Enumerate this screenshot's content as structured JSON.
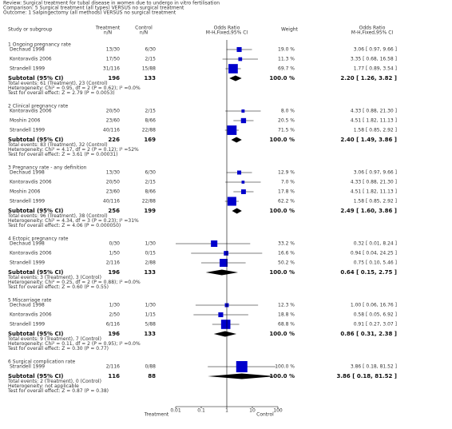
{
  "chart_data": {
    "type": "forest",
    "review": "Review: Surgical treatment for tubal disease in women due to undergo in vitro fertilisation",
    "comparison": "Comparison: 5 Surgical treatment (all types) VERSUS no surgical treatment",
    "outcome": "Outcome: 1 Salpingectomy (all methods) VERSUS no surgical treatment",
    "columns": {
      "study": "Study or subgroup",
      "treatment": [
        "Treatment",
        "n/N"
      ],
      "control": [
        "Control",
        "n/N"
      ],
      "plot": [
        "Odds Ratio",
        "M-H,Fixed,95% CI"
      ],
      "weight": "Weight",
      "estimate": [
        "Odds Ratio",
        "M-H,Fixed,95% CI"
      ]
    },
    "xscale": "log",
    "xlim": [
      0.01,
      100
    ],
    "xticks": [
      0.01,
      0.1,
      1,
      10,
      100
    ],
    "xlabel_left": "Treatment",
    "xlabel_right": "Control",
    "square_color": "#0000cc",
    "groups": [
      {
        "title": "1 Ongoing pregnancy rate",
        "studies": [
          {
            "name": "Dechaud 1998",
            "treatment": "13/30",
            "control": "6/30",
            "weight": 19.0,
            "weight_label": "19.0 %",
            "or": 3.06,
            "lo": 0.97,
            "hi": 9.66,
            "ci_label": "3.06 [ 0.97, 9.66 ]"
          },
          {
            "name": "Kontoravdis 2006",
            "treatment": "17/50",
            "control": "2/15",
            "weight": 11.3,
            "weight_label": "11.3 %",
            "or": 3.35,
            "lo": 0.68,
            "hi": 16.58,
            "ci_label": "3.35 [ 0.68, 16.58 ]"
          },
          {
            "name": "Strandell 1999",
            "treatment": "31/116",
            "control": "15/88",
            "weight": 69.7,
            "weight_label": "69.7 %",
            "or": 1.77,
            "lo": 0.89,
            "hi": 3.54,
            "ci_label": "1.77 [ 0.89, 3.54 ]"
          }
        ],
        "subtotal": {
          "label": "Subtotal (95% CI)",
          "treatment": 196,
          "control": 133,
          "weight": 100.0,
          "weight_label": "100.0 %",
          "or": 2.2,
          "lo": 1.26,
          "hi": 3.82,
          "ci_label": "2.20 [ 1.26, 3.82 ]"
        },
        "total_events": "Total events: 61 (Treatment), 23 (Control)",
        "heterogeneity": "Heterogeneity: Chi² = 0.95, df = 2 (P = 0.62); I² =0.0%",
        "overall_effect": "Test for overall effect: Z = 2.79 (P = 0.0053)"
      },
      {
        "title": "2 Clinical pregnancy rate",
        "studies": [
          {
            "name": "Kontoravdis 2006",
            "treatment": "20/50",
            "control": "2/15",
            "weight": 8.0,
            "weight_label": "8.0 %",
            "or": 4.33,
            "lo": 0.88,
            "hi": 21.3,
            "ci_label": "4.33 [ 0.88, 21.30 ]"
          },
          {
            "name": "Moshin 2006",
            "treatment": "23/60",
            "control": "8/66",
            "weight": 20.5,
            "weight_label": "20.5 %",
            "or": 4.51,
            "lo": 1.82,
            "hi": 11.13,
            "ci_label": "4.51 [ 1.82, 11.13 ]"
          },
          {
            "name": "Strandell 1999",
            "treatment": "40/116",
            "control": "22/88",
            "weight": 71.5,
            "weight_label": "71.5 %",
            "or": 1.58,
            "lo": 0.85,
            "hi": 2.92,
            "ci_label": "1.58 [ 0.85, 2.92 ]"
          }
        ],
        "subtotal": {
          "label": "Subtotal (95% CI)",
          "treatment": 226,
          "control": 169,
          "weight": 100.0,
          "weight_label": "100.0 %",
          "or": 2.4,
          "lo": 1.49,
          "hi": 3.86,
          "ci_label": "2.40 [ 1.49, 3.86 ]"
        },
        "total_events": "Total events: 83 (Treatment), 32 (Control)",
        "heterogeneity": "Heterogeneity: Chi² = 4.17, df = 2 (P = 0.12); I² =52%",
        "overall_effect": "Test for overall effect: Z = 3.61 (P = 0.00031)"
      },
      {
        "title": "3 Pregnancy rate - any definition",
        "studies": [
          {
            "name": "Dechaud 1998",
            "treatment": "13/30",
            "control": "6/30",
            "weight": 12.9,
            "weight_label": "12.9 %",
            "or": 3.06,
            "lo": 0.97,
            "hi": 9.66,
            "ci_label": "3.06 [ 0.97, 9.66 ]"
          },
          {
            "name": "Kontoravdis 2006",
            "treatment": "20/50",
            "control": "2/15",
            "weight": 7.0,
            "weight_label": "7.0 %",
            "or": 4.33,
            "lo": 0.88,
            "hi": 21.3,
            "ci_label": "4.33 [ 0.88, 21.30 ]"
          },
          {
            "name": "Moshin 2006",
            "treatment": "23/60",
            "control": "8/66",
            "weight": 17.8,
            "weight_label": "17.8 %",
            "or": 4.51,
            "lo": 1.82,
            "hi": 11.13,
            "ci_label": "4.51 [ 1.82, 11.13 ]"
          },
          {
            "name": "Strandell 1999",
            "treatment": "40/116",
            "control": "22/88",
            "weight": 62.2,
            "weight_label": "62.2 %",
            "or": 1.58,
            "lo": 0.85,
            "hi": 2.92,
            "ci_label": "1.58 [ 0.85, 2.92 ]"
          }
        ],
        "subtotal": {
          "label": "Subtotal (95% CI)",
          "treatment": 256,
          "control": 199,
          "weight": 100.0,
          "weight_label": "100.0 %",
          "or": 2.49,
          "lo": 1.6,
          "hi": 3.86,
          "ci_label": "2.49 [ 1.60, 3.86 ]"
        },
        "total_events": "Total events: 96 (Treatment), 38 (Control)",
        "heterogeneity": "Heterogeneity: Chi² = 4.34, df = 3 (P = 0.23); I² =31%",
        "overall_effect": "Test for overall effect: Z = 4.06 (P = 0.000050)"
      },
      {
        "title": "4 Ectopic pregnancy rate",
        "studies": [
          {
            "name": "Dechaud 1998",
            "treatment": "0/30",
            "control": "1/30",
            "weight": 33.2,
            "weight_label": "33.2 %",
            "or": 0.32,
            "lo": 0.01,
            "hi": 8.24,
            "ci_label": "0.32 [ 0.01, 8.24 ]"
          },
          {
            "name": "Kontoravdis 2006",
            "treatment": "1/50",
            "control": "0/15",
            "weight": 16.6,
            "weight_label": "16.6 %",
            "or": 0.94,
            "lo": 0.04,
            "hi": 24.25,
            "ci_label": "0.94 [ 0.04, 24.25 ]"
          },
          {
            "name": "Strandell 1999",
            "treatment": "2/116",
            "control": "2/88",
            "weight": 50.2,
            "weight_label": "50.2 %",
            "or": 0.75,
            "lo": 0.1,
            "hi": 5.46,
            "ci_label": "0.75 [ 0.10, 5.46 ]"
          }
        ],
        "subtotal": {
          "label": "Subtotal (95% CI)",
          "treatment": 196,
          "control": 133,
          "weight": 100.0,
          "weight_label": "100.0 %",
          "or": 0.64,
          "lo": 0.15,
          "hi": 2.75,
          "ci_label": "0.64 [ 0.15, 2.75 ]"
        },
        "total_events": "Total events: 3 (Treatment), 3 (Control)",
        "heterogeneity": "Heterogeneity: Chi² = 0.25, df = 2 (P = 0.88); I² =0.0%",
        "overall_effect": "Test for overall effect: Z = 0.60 (P = 0.55)"
      },
      {
        "title": "5 Miscarriage rate",
        "studies": [
          {
            "name": "Dechaud 1998",
            "treatment": "1/30",
            "control": "1/30",
            "weight": 12.3,
            "weight_label": "12.3 %",
            "or": 1.0,
            "lo": 0.06,
            "hi": 16.76,
            "ci_label": "1.00 [ 0.06, 16.76 ]"
          },
          {
            "name": "Kontoravdis 2006",
            "treatment": "2/50",
            "control": "1/15",
            "weight": 18.8,
            "weight_label": "18.8 %",
            "or": 0.58,
            "lo": 0.05,
            "hi": 6.92,
            "ci_label": "0.58 [ 0.05, 6.92 ]"
          },
          {
            "name": "Strandell 1999",
            "treatment": "6/116",
            "control": "5/88",
            "weight": 68.8,
            "weight_label": "68.8 %",
            "or": 0.91,
            "lo": 0.27,
            "hi": 3.07,
            "ci_label": "0.91 [ 0.27, 3.07 ]"
          }
        ],
        "subtotal": {
          "label": "Subtotal (95% CI)",
          "treatment": 196,
          "control": 133,
          "weight": 100.0,
          "weight_label": "100.0 %",
          "or": 0.86,
          "lo": 0.31,
          "hi": 2.38,
          "ci_label": "0.86 [ 0.31, 2.38 ]"
        },
        "total_events": "Total events: 9 (Treatment), 7 (Control)",
        "heterogeneity": "Heterogeneity: Chi² = 0.11, df = 2 (P = 0.95); I² =0.0%",
        "overall_effect": "Test for overall effect: Z = 0.30 (P = 0.77)"
      },
      {
        "title": "6 Surgical complication rate",
        "studies": [
          {
            "name": "Strandell 1999",
            "treatment": "2/116",
            "control": "0/88",
            "weight": 100.0,
            "weight_label": "100.0 %",
            "or": 3.86,
            "lo": 0.18,
            "hi": 81.52,
            "ci_label": "3.86 [ 0.18, 81.52 ]"
          }
        ],
        "subtotal": {
          "label": "Subtotal (95% CI)",
          "treatment": 116,
          "control": 88,
          "weight": 100.0,
          "weight_label": "100.0 %",
          "or": 3.86,
          "lo": 0.18,
          "hi": 81.52,
          "ci_label": "3.86 [ 0.18, 81.52 ]"
        },
        "total_events": "Total events: 2 (Treatment), 0 (Control)",
        "heterogeneity": "Heterogeneity: not applicable",
        "overall_effect": "Test for overall effect: Z = 0.87 (P = 0.38)"
      }
    ]
  }
}
